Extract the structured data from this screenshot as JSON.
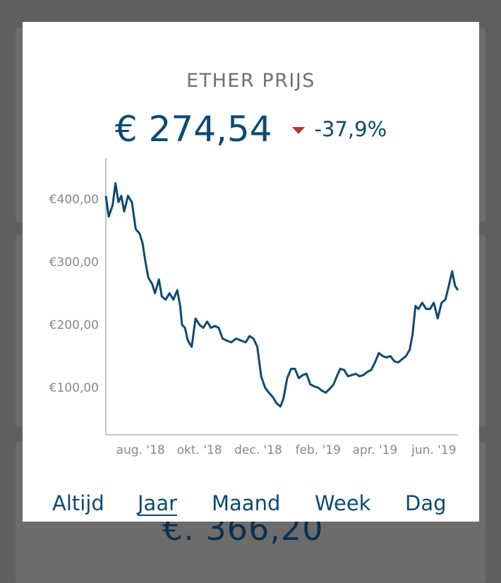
{
  "background": {
    "partial_value": "€. 366,20"
  },
  "modal": {
    "title": "ETHER PRIJS",
    "price": "€ 274,54",
    "change_direction_icon": "triangle-down-icon",
    "change": "-37,9%",
    "colors": {
      "primary": "#0b4a73",
      "negative": "#c0323a",
      "line": "#0d4a73"
    }
  },
  "tabs": [
    {
      "label": "Altijd",
      "active": false
    },
    {
      "label": "Jaar",
      "active": true
    },
    {
      "label": "Maand",
      "active": false
    },
    {
      "label": "Week",
      "active": false
    },
    {
      "label": "Dag",
      "active": false
    }
  ],
  "chart_data": {
    "type": "line",
    "title": "",
    "xlabel": "",
    "ylabel": "",
    "ylim": [
      25,
      465
    ],
    "xlim": [
      "2018-06-26",
      "2019-06-26"
    ],
    "grid": false,
    "y_ticks": [
      {
        "value": 400,
        "label": "€400,00"
      },
      {
        "value": 300,
        "label": "€300,00"
      },
      {
        "value": 200,
        "label": "€200,00"
      },
      {
        "value": 100,
        "label": "€100,00"
      }
    ],
    "x_ticks": [
      {
        "value": "2018-08-01",
        "label": "aug. '18"
      },
      {
        "value": "2018-10-01",
        "label": "okt. '18"
      },
      {
        "value": "2018-12-01",
        "label": "dec. '18"
      },
      {
        "value": "2019-02-01",
        "label": "feb. '19"
      },
      {
        "value": "2019-04-01",
        "label": "apr. '19"
      },
      {
        "value": "2019-06-01",
        "label": "jun. '19"
      }
    ],
    "series": [
      {
        "points": [
          [
            "2018-06-26",
            405
          ],
          [
            "2018-06-29",
            372
          ],
          [
            "2018-07-03",
            390
          ],
          [
            "2018-07-06",
            425
          ],
          [
            "2018-07-09",
            395
          ],
          [
            "2018-07-12",
            405
          ],
          [
            "2018-07-15",
            380
          ],
          [
            "2018-07-19",
            405
          ],
          [
            "2018-07-23",
            395
          ],
          [
            "2018-07-27",
            352
          ],
          [
            "2018-07-31",
            345
          ],
          [
            "2018-08-03",
            330
          ],
          [
            "2018-08-06",
            300
          ],
          [
            "2018-08-09",
            275
          ],
          [
            "2018-08-13",
            265
          ],
          [
            "2018-08-16",
            250
          ],
          [
            "2018-08-20",
            272
          ],
          [
            "2018-08-23",
            245
          ],
          [
            "2018-08-27",
            240
          ],
          [
            "2018-08-31",
            250
          ],
          [
            "2018-09-04",
            240
          ],
          [
            "2018-09-08",
            255
          ],
          [
            "2018-09-11",
            230
          ],
          [
            "2018-09-13",
            200
          ],
          [
            "2018-09-16",
            195
          ],
          [
            "2018-09-19",
            175
          ],
          [
            "2018-09-23",
            165
          ],
          [
            "2018-09-27",
            210
          ],
          [
            "2018-10-01",
            200
          ],
          [
            "2018-10-05",
            195
          ],
          [
            "2018-10-09",
            205
          ],
          [
            "2018-10-13",
            195
          ],
          [
            "2018-10-17",
            198
          ],
          [
            "2018-10-21",
            195
          ],
          [
            "2018-10-25",
            178
          ],
          [
            "2018-10-29",
            175
          ],
          [
            "2018-11-03",
            172
          ],
          [
            "2018-11-08",
            178
          ],
          [
            "2018-11-13",
            175
          ],
          [
            "2018-11-18",
            172
          ],
          [
            "2018-11-22",
            182
          ],
          [
            "2018-11-26",
            178
          ],
          [
            "2018-11-30",
            165
          ],
          [
            "2018-12-04",
            118
          ],
          [
            "2018-12-08",
            100
          ],
          [
            "2018-12-12",
            92
          ],
          [
            "2018-12-16",
            85
          ],
          [
            "2018-12-20",
            75
          ],
          [
            "2018-12-24",
            70
          ],
          [
            "2018-12-27",
            82
          ],
          [
            "2018-12-31",
            115
          ],
          [
            "2019-01-04",
            130
          ],
          [
            "2019-01-08",
            130
          ],
          [
            "2019-01-12",
            115
          ],
          [
            "2019-01-16",
            120
          ],
          [
            "2019-01-20",
            122
          ],
          [
            "2019-01-24",
            105
          ],
          [
            "2019-01-28",
            102
          ],
          [
            "2019-02-01",
            100
          ],
          [
            "2019-02-05",
            95
          ],
          [
            "2019-02-09",
            92
          ],
          [
            "2019-02-13",
            98
          ],
          [
            "2019-02-17",
            105
          ],
          [
            "2019-02-21",
            120
          ],
          [
            "2019-02-24",
            130
          ],
          [
            "2019-02-28",
            128
          ],
          [
            "2019-03-04",
            118
          ],
          [
            "2019-03-08",
            120
          ],
          [
            "2019-03-12",
            122
          ],
          [
            "2019-03-16",
            118
          ],
          [
            "2019-03-20",
            120
          ],
          [
            "2019-03-24",
            125
          ],
          [
            "2019-03-28",
            128
          ],
          [
            "2019-04-01",
            140
          ],
          [
            "2019-04-05",
            155
          ],
          [
            "2019-04-09",
            150
          ],
          [
            "2019-04-13",
            148
          ],
          [
            "2019-04-17",
            150
          ],
          [
            "2019-04-21",
            142
          ],
          [
            "2019-04-25",
            140
          ],
          [
            "2019-04-29",
            145
          ],
          [
            "2019-05-03",
            150
          ],
          [
            "2019-05-07",
            160
          ],
          [
            "2019-05-10",
            185
          ],
          [
            "2019-05-13",
            230
          ],
          [
            "2019-05-16",
            225
          ],
          [
            "2019-05-20",
            235
          ],
          [
            "2019-05-24",
            225
          ],
          [
            "2019-05-28",
            225
          ],
          [
            "2019-06-01",
            235
          ],
          [
            "2019-06-05",
            210
          ],
          [
            "2019-06-09",
            235
          ],
          [
            "2019-06-13",
            240
          ],
          [
            "2019-06-17",
            265
          ],
          [
            "2019-06-20",
            285
          ],
          [
            "2019-06-23",
            262
          ],
          [
            "2019-06-26",
            255
          ]
        ]
      }
    ]
  }
}
